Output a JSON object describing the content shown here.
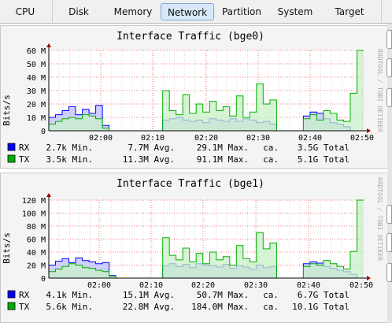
{
  "tabs": [
    {
      "label": "CPU"
    },
    {
      "label": "Disk"
    },
    {
      "label": "Memory"
    },
    {
      "label": "Network",
      "active": true
    },
    {
      "label": "Partition"
    },
    {
      "label": "System"
    },
    {
      "label": "Target"
    }
  ],
  "colors": {
    "rx": "#0000ff",
    "rx_fill": "#c8c8ff",
    "tx": "#00b000",
    "tx_fill": "#c8f0c8",
    "grid": "#f08080",
    "axis": "#000000"
  },
  "chart_data": [
    {
      "type": "area",
      "title": "Interface Traffic (bge0)",
      "ylabel": "Bits/s",
      "watermark": "RRDTOOL / TOBI OETIKER",
      "y_ticks": [
        "0",
        "10 M",
        "20 M",
        "30 M",
        "40 M",
        "50 M",
        "60 M"
      ],
      "ylim": [
        0,
        60
      ],
      "x_ticks": [
        "02:00",
        "02:10",
        "02:20",
        "02:30",
        "02:40",
        "02:50"
      ],
      "grid": true,
      "series": [
        {
          "name": "RX",
          "color": "#0000ff",
          "values": [
            10,
            12,
            15,
            18,
            12,
            16,
            13,
            19,
            4,
            0,
            0,
            0,
            0,
            0,
            0,
            0,
            0,
            8,
            9,
            10,
            8,
            7,
            8,
            6,
            9,
            8,
            7,
            9,
            7,
            9,
            8,
            6,
            7,
            5,
            0,
            0,
            0,
            0,
            11,
            14,
            13,
            9,
            6,
            5,
            3,
            0,
            0
          ]
        },
        {
          "name": "TX",
          "color": "#00b000",
          "values": [
            5,
            7,
            9,
            10,
            9,
            12,
            11,
            9,
            2,
            0,
            0,
            0,
            0,
            0,
            0,
            0,
            0,
            30,
            15,
            12,
            27,
            13,
            20,
            14,
            22,
            15,
            18,
            11,
            26,
            10,
            14,
            35,
            20,
            23,
            0,
            0,
            0,
            0,
            9,
            12,
            8,
            15,
            13,
            8,
            7,
            28,
            60
          ]
        }
      ],
      "legend": [
        {
          "name": "RX",
          "min": "2.7k Min.",
          "avg": "7.7M Avg.",
          "max": "29.1M Max.",
          "ca": "ca.",
          "total": "3.5G Total"
        },
        {
          "name": "TX",
          "min": "3.5k Min.",
          "avg": "11.3M Avg.",
          "max": "91.1M Max.",
          "ca": "ca.",
          "total": "5.1G Total"
        }
      ]
    },
    {
      "type": "area",
      "title": "Interface Traffic (bge1)",
      "ylabel": "Bits/s",
      "watermark": "RRDTOOL / TOBI OETIKER",
      "y_ticks": [
        "0",
        "20 M",
        "40 M",
        "60 M",
        "80 M",
        "100 M",
        "120 M"
      ],
      "ylim": [
        0,
        120
      ],
      "x_ticks": [
        "02:00",
        "02:10",
        "02:20",
        "02:30",
        "02:40",
        "02:50"
      ],
      "grid": true,
      "series": [
        {
          "name": "RX",
          "color": "#0000ff",
          "values": [
            20,
            26,
            30,
            24,
            31,
            27,
            25,
            22,
            24,
            4,
            0,
            0,
            0,
            0,
            0,
            0,
            0,
            19,
            22,
            18,
            21,
            16,
            22,
            20,
            19,
            17,
            21,
            15,
            19,
            17,
            14,
            20,
            16,
            18,
            0,
            0,
            0,
            0,
            22,
            25,
            23,
            18,
            15,
            12,
            10,
            6,
            0
          ]
        },
        {
          "name": "TX",
          "color": "#00b000",
          "values": [
            10,
            14,
            18,
            22,
            20,
            16,
            15,
            12,
            10,
            3,
            0,
            0,
            0,
            0,
            0,
            0,
            0,
            62,
            35,
            28,
            46,
            25,
            38,
            22,
            40,
            28,
            33,
            20,
            50,
            30,
            25,
            70,
            45,
            54,
            0,
            0,
            0,
            0,
            18,
            22,
            20,
            27,
            22,
            18,
            14,
            41,
            120
          ]
        }
      ],
      "legend": [
        {
          "name": "RX",
          "min": "4.1k Min.",
          "avg": "15.1M Avg.",
          "max": "50.7M Max.",
          "ca": "ca.",
          "total": "6.7G Total"
        },
        {
          "name": "TX",
          "min": "5.6k Min.",
          "avg": "22.8M Avg.",
          "max": "184.0M Max.",
          "ca": "ca.",
          "total": "10.1G Total"
        }
      ]
    }
  ]
}
